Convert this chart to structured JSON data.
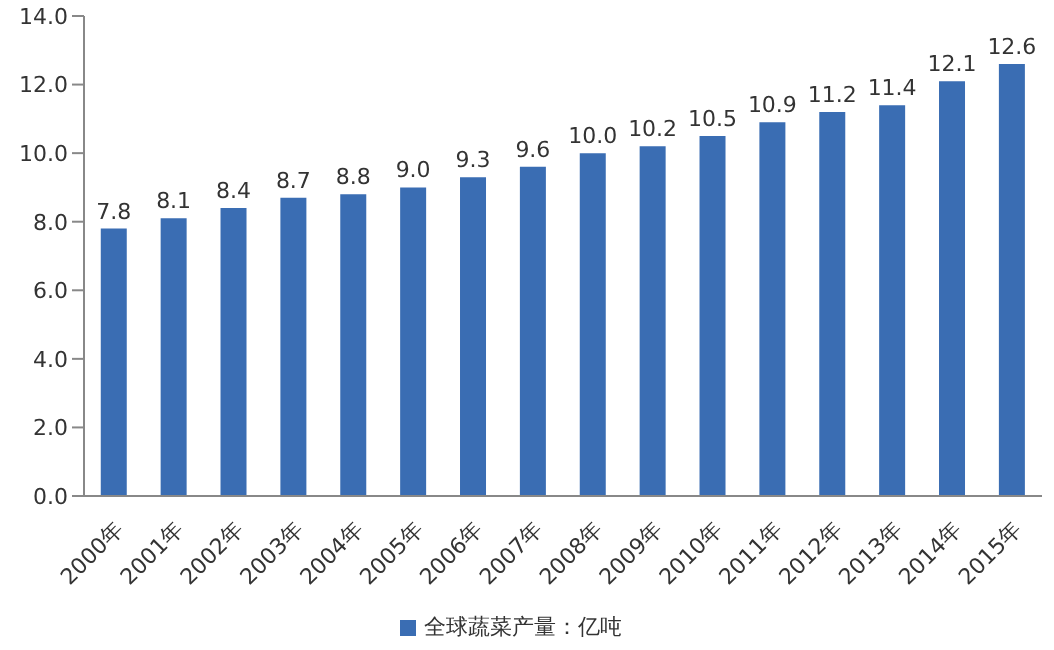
{
  "chart_data": {
    "type": "bar",
    "categories": [
      "2000年",
      "2001年",
      "2002年",
      "2003年",
      "2004年",
      "2005年",
      "2006年",
      "2007年",
      "2008年",
      "2009年",
      "2010年",
      "2011年",
      "2012年",
      "2013年",
      "2014年",
      "2015年"
    ],
    "series": [
      {
        "name": "全球蔬菜产量：亿吨",
        "color": "#3a6db3",
        "values": [
          7.8,
          8.1,
          8.4,
          8.7,
          8.8,
          9.0,
          9.3,
          9.6,
          10.0,
          10.2,
          10.5,
          10.9,
          11.2,
          11.4,
          12.1,
          12.6
        ]
      }
    ],
    "ylim": [
      0,
      14
    ],
    "yticks": [
      {
        "value": 0,
        "label": "0.0"
      },
      {
        "value": 2,
        "label": "2.0"
      },
      {
        "value": 4,
        "label": "4.0"
      },
      {
        "value": 6,
        "label": "6.0"
      },
      {
        "value": 8,
        "label": "8.0"
      },
      {
        "value": 10,
        "label": "10.0"
      },
      {
        "value": 12,
        "label": "12.0"
      },
      {
        "value": 14,
        "label": "14.0"
      }
    ],
    "value_labels": [
      "7.8",
      "8.1",
      "8.4",
      "8.7",
      "8.8",
      "9.0",
      "9.3",
      "9.6",
      "10.0",
      "10.2",
      "10.5",
      "10.9",
      "11.2",
      "11.4",
      "12.1",
      "12.6"
    ],
    "grid": false,
    "legend": "bottom"
  }
}
